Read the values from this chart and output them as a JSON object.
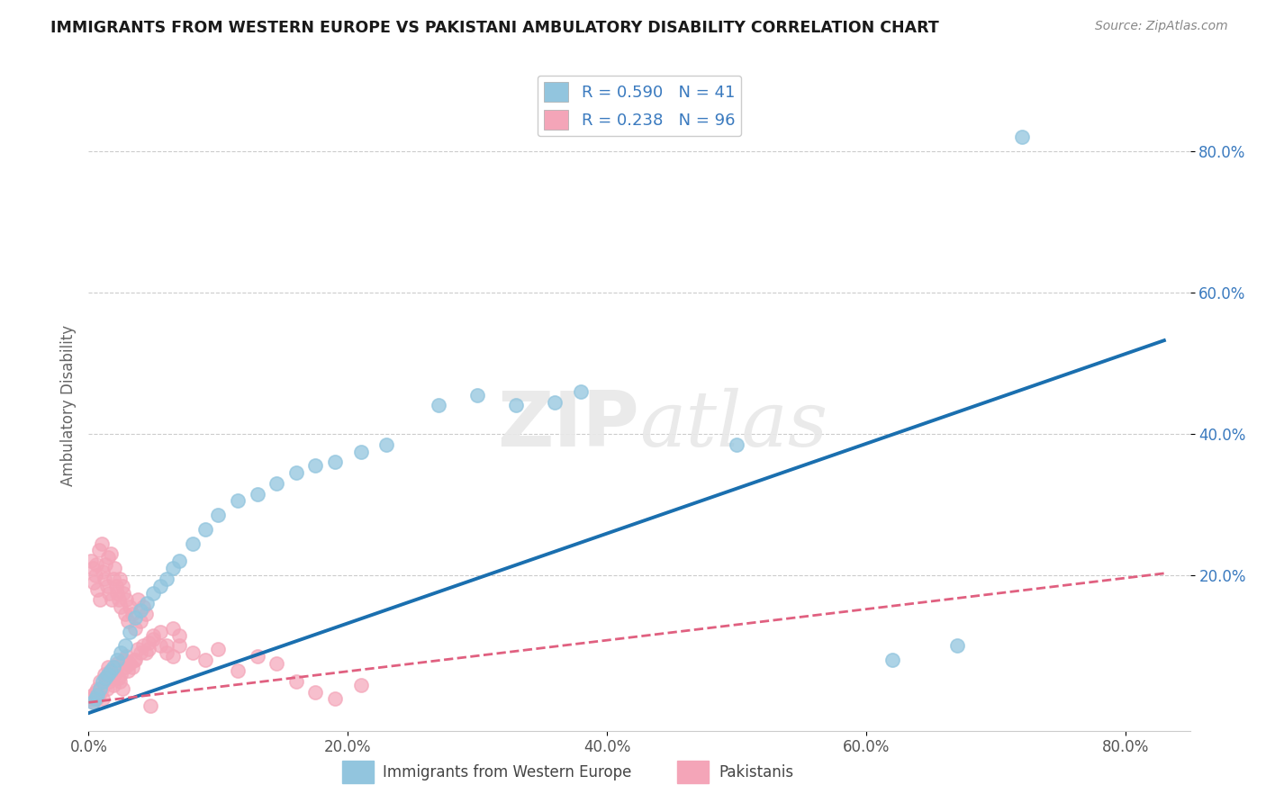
{
  "title": "IMMIGRANTS FROM WESTERN EUROPE VS PAKISTANI AMBULATORY DISABILITY CORRELATION CHART",
  "source": "Source: ZipAtlas.com",
  "ylabel": "Ambulatory Disability",
  "xlim": [
    0.0,
    0.85
  ],
  "ylim": [
    -0.02,
    0.9
  ],
  "xtick_labels": [
    "0.0%",
    "20.0%",
    "40.0%",
    "60.0%",
    "80.0%"
  ],
  "xtick_vals": [
    0.0,
    0.2,
    0.4,
    0.6,
    0.8
  ],
  "ytick_labels": [
    "20.0%",
    "40.0%",
    "60.0%",
    "80.0%"
  ],
  "ytick_vals": [
    0.2,
    0.4,
    0.6,
    0.8
  ],
  "blue_scatter_color": "#92c5de",
  "pink_scatter_color": "#f4a5b8",
  "blue_line_color": "#1a6faf",
  "pink_line_color": "#e06080",
  "ytick_color": "#3a7abf",
  "xtick_color": "#555555",
  "legend_text_color": "#3a7abf",
  "R_blue": 0.59,
  "N_blue": 41,
  "R_pink": 0.238,
  "N_pink": 96,
  "watermark": "ZIPatlas",
  "title_color": "#1a1a1a",
  "grid_color": "#cccccc",
  "background_color": "#ffffff",
  "blue_slope": 0.635,
  "blue_intercept": 0.005,
  "pink_slope": 0.22,
  "pink_intercept": 0.02,
  "blue_scatter_x": [
    0.003,
    0.005,
    0.007,
    0.009,
    0.011,
    0.013,
    0.015,
    0.017,
    0.019,
    0.022,
    0.025,
    0.028,
    0.032,
    0.036,
    0.04,
    0.045,
    0.05,
    0.055,
    0.06,
    0.065,
    0.07,
    0.08,
    0.09,
    0.1,
    0.115,
    0.13,
    0.145,
    0.16,
    0.175,
    0.19,
    0.21,
    0.23,
    0.27,
    0.3,
    0.33,
    0.36,
    0.38,
    0.5,
    0.62,
    0.67,
    0.72
  ],
  "blue_scatter_y": [
    0.02,
    0.025,
    0.03,
    0.04,
    0.05,
    0.055,
    0.06,
    0.065,
    0.07,
    0.08,
    0.09,
    0.1,
    0.12,
    0.14,
    0.15,
    0.16,
    0.175,
    0.185,
    0.195,
    0.21,
    0.22,
    0.245,
    0.265,
    0.285,
    0.305,
    0.315,
    0.33,
    0.345,
    0.355,
    0.36,
    0.375,
    0.385,
    0.44,
    0.455,
    0.44,
    0.445,
    0.46,
    0.385,
    0.08,
    0.1,
    0.82
  ],
  "pink_scatter_x": [
    0.002,
    0.003,
    0.004,
    0.005,
    0.006,
    0.007,
    0.008,
    0.009,
    0.01,
    0.011,
    0.012,
    0.013,
    0.014,
    0.015,
    0.016,
    0.017,
    0.018,
    0.019,
    0.02,
    0.021,
    0.022,
    0.023,
    0.024,
    0.025,
    0.026,
    0.027,
    0.028,
    0.029,
    0.03,
    0.032,
    0.034,
    0.036,
    0.038,
    0.04,
    0.042,
    0.044,
    0.046,
    0.05,
    0.055,
    0.06,
    0.065,
    0.07,
    0.002,
    0.003,
    0.004,
    0.005,
    0.006,
    0.007,
    0.008,
    0.009,
    0.01,
    0.011,
    0.012,
    0.013,
    0.014,
    0.015,
    0.016,
    0.017,
    0.018,
    0.019,
    0.02,
    0.021,
    0.022,
    0.023,
    0.024,
    0.025,
    0.026,
    0.027,
    0.028,
    0.029,
    0.03,
    0.032,
    0.034,
    0.036,
    0.038,
    0.04,
    0.042,
    0.044,
    0.046,
    0.05,
    0.055,
    0.06,
    0.065,
    0.07,
    0.08,
    0.09,
    0.1,
    0.115,
    0.13,
    0.145,
    0.16,
    0.175,
    0.19,
    0.21,
    0.035,
    0.048
  ],
  "pink_scatter_y": [
    0.025,
    0.03,
    0.02,
    0.035,
    0.025,
    0.04,
    0.03,
    0.05,
    0.04,
    0.025,
    0.06,
    0.055,
    0.04,
    0.07,
    0.05,
    0.065,
    0.055,
    0.045,
    0.06,
    0.07,
    0.075,
    0.055,
    0.05,
    0.06,
    0.04,
    0.08,
    0.07,
    0.085,
    0.065,
    0.075,
    0.07,
    0.08,
    0.095,
    0.09,
    0.1,
    0.09,
    0.105,
    0.11,
    0.12,
    0.1,
    0.125,
    0.115,
    0.22,
    0.21,
    0.19,
    0.2,
    0.215,
    0.18,
    0.235,
    0.165,
    0.245,
    0.205,
    0.195,
    0.215,
    0.185,
    0.225,
    0.175,
    0.23,
    0.165,
    0.195,
    0.21,
    0.185,
    0.175,
    0.165,
    0.195,
    0.155,
    0.185,
    0.175,
    0.145,
    0.165,
    0.135,
    0.155,
    0.145,
    0.125,
    0.165,
    0.135,
    0.155,
    0.145,
    0.095,
    0.115,
    0.1,
    0.09,
    0.085,
    0.1,
    0.09,
    0.08,
    0.095,
    0.065,
    0.085,
    0.075,
    0.05,
    0.035,
    0.025,
    0.045,
    0.08,
    0.015
  ]
}
